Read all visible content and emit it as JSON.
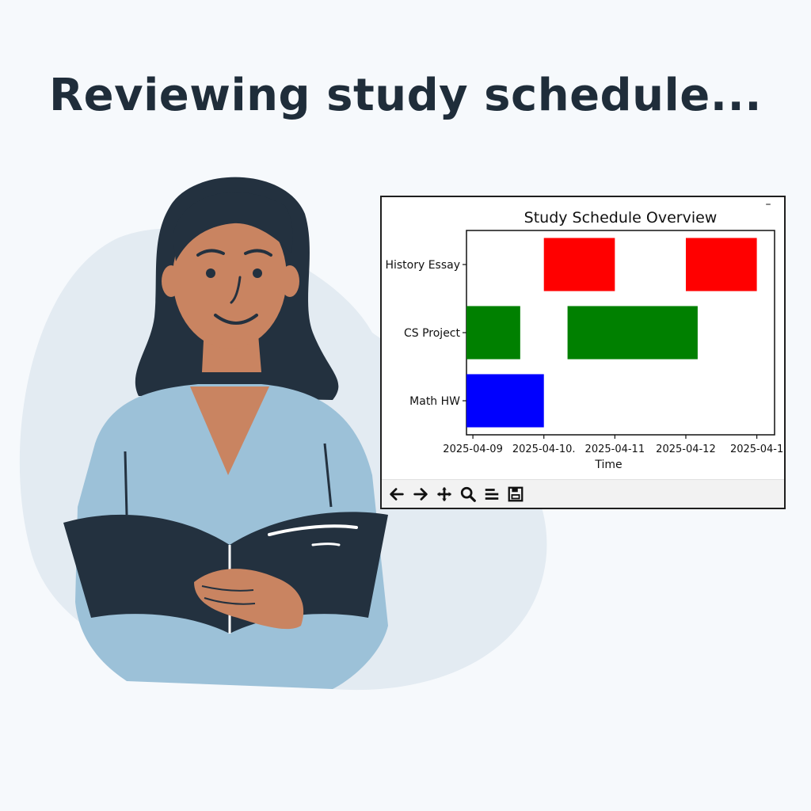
{
  "headline": "Reviewing study schedule...",
  "plot_window": {
    "minimize_label": "–",
    "toolbar": [
      {
        "name": "back-arrow-icon"
      },
      {
        "name": "forward-arrow-icon"
      },
      {
        "name": "pan-move-icon"
      },
      {
        "name": "zoom-magnifier-icon"
      },
      {
        "name": "subplots-config-icon"
      },
      {
        "name": "save-figure-icon"
      }
    ]
  },
  "chart_data": {
    "type": "bar",
    "orientation": "horizontal-gantt",
    "title": "Study Schedule Overview",
    "xlabel": "Time",
    "ylabel": "",
    "categories": [
      "Math HW",
      "CS Project",
      "History Essay"
    ],
    "xlim": [
      "2025-04-08T21:50",
      "2025-04-13T06:00"
    ],
    "x_ticks": [
      {
        "value": "2025-04-09",
        "label": "2025-04-09"
      },
      {
        "value": "2025-04-10",
        "label": "2025-04-10."
      },
      {
        "value": "2025-04-11",
        "label": "2025-04-11"
      },
      {
        "value": "2025-04-12",
        "label": "2025-04-12"
      },
      {
        "value": "2025-04-13",
        "label": "2025-04-1"
      }
    ],
    "grid": false,
    "series": [
      {
        "category": "Math HW",
        "color": "#0000ff",
        "segments": [
          {
            "start": "2025-04-08T21:50",
            "end": "2025-04-10T00:00"
          }
        ]
      },
      {
        "category": "CS Project",
        "color": "#008000",
        "segments": [
          {
            "start": "2025-04-08T21:50",
            "end": "2025-04-09T16:00"
          },
          {
            "start": "2025-04-10T08:00",
            "end": "2025-04-12T04:00"
          }
        ]
      },
      {
        "category": "History Essay",
        "color": "#ff0000",
        "segments": [
          {
            "start": "2025-04-10T00:00",
            "end": "2025-04-11T00:00"
          },
          {
            "start": "2025-04-12T00:00",
            "end": "2025-04-13T00:00"
          }
        ]
      }
    ]
  }
}
